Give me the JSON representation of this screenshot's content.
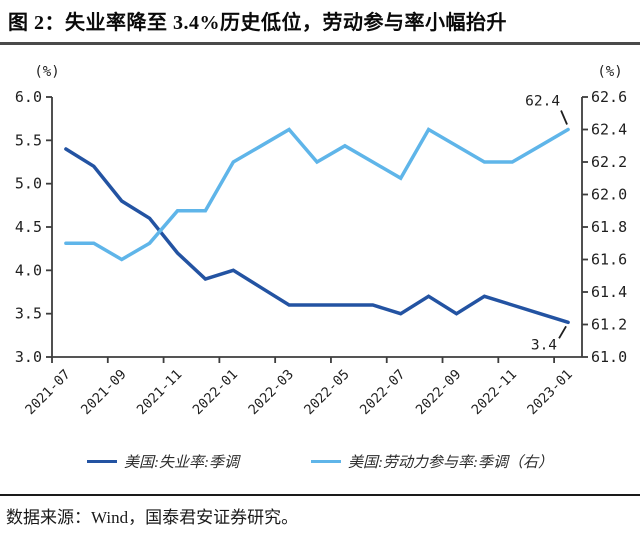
{
  "title": "图 2：失业率降至 3.4%历史低位，劳动参与率小幅抬升",
  "source_note": "数据来源：Wind，国泰君安证券研究。",
  "colors": {
    "unemployment_line": "#2353A2",
    "participation_line": "#5FB5E9",
    "axis": "#3d3d3d",
    "title_rule": "#4a4a4a",
    "source_rule": "#1a1a1a"
  },
  "chart_data": {
    "type": "line",
    "x": [
      "2021-07",
      "2021-08",
      "2021-09",
      "2021-10",
      "2021-11",
      "2021-12",
      "2022-01",
      "2022-02",
      "2022-03",
      "2022-04",
      "2022-05",
      "2022-06",
      "2022-07",
      "2022-08",
      "2022-09",
      "2022-10",
      "2022-11",
      "2022-12",
      "2023-01"
    ],
    "x_tick_labels": [
      "2021-07",
      "2021-09",
      "2021-11",
      "2022-01",
      "2022-03",
      "2022-05",
      "2022-07",
      "2022-09",
      "2022-11",
      "2023-01"
    ],
    "series": [
      {
        "name": "美国:失业率:季调",
        "axis": "left",
        "color": "#2353A2",
        "values": [
          5.4,
          5.2,
          4.8,
          4.6,
          4.2,
          3.9,
          4.0,
          3.8,
          3.6,
          3.6,
          3.6,
          3.6,
          3.5,
          3.7,
          3.5,
          3.7,
          3.6,
          3.5,
          3.4
        ]
      },
      {
        "name": "美国:劳动力参与率:季调（右）",
        "axis": "right",
        "color": "#5FB5E9",
        "values": [
          61.7,
          61.7,
          61.6,
          61.7,
          61.9,
          61.9,
          62.2,
          62.3,
          62.4,
          62.2,
          62.3,
          62.2,
          62.1,
          62.4,
          62.3,
          62.2,
          62.2,
          62.3,
          62.4
        ]
      }
    ],
    "left_axis": {
      "title": "(%)",
      "min": 3.0,
      "max": 6.0,
      "step": 0.5,
      "tick_labels": [
        "6.0",
        "5.5",
        "5.0",
        "4.5",
        "4.0",
        "3.5",
        "3.0"
      ]
    },
    "right_axis": {
      "title": "(%)",
      "min": 61.0,
      "max": 62.6,
      "step": 0.2,
      "tick_labels": [
        "62.6",
        "62.4",
        "62.2",
        "62.0",
        "61.8",
        "61.6",
        "61.4",
        "61.2",
        "61.0"
      ]
    },
    "annotations": [
      {
        "text": "62.4",
        "series": 1,
        "point_index": 18,
        "placement": "above"
      },
      {
        "text": "3.4",
        "series": 0,
        "point_index": 18,
        "placement": "below"
      }
    ],
    "legend_position": "bottom",
    "grid": false
  }
}
